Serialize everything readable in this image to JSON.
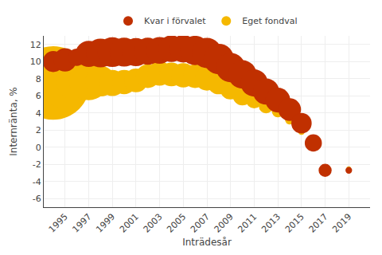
{
  "chart_data": {
    "type": "bubble",
    "xlabel": "Inträdesår",
    "ylabel": "Internränta, %",
    "xlim": [
      1993.2,
      2020.8
    ],
    "ylim": [
      -7,
      13
    ],
    "xticks": [
      1995,
      1997,
      1999,
      2001,
      2003,
      2005,
      2007,
      2009,
      2011,
      2013,
      2015,
      2017,
      2019
    ],
    "yticks": [
      -6,
      -4,
      -2,
      0,
      2,
      4,
      6,
      8,
      10,
      12
    ],
    "grid": true,
    "legend": "top",
    "series": [
      {
        "name": "Kvar i förvalet",
        "color": "#c03000",
        "x": [
          1994,
          1995,
          1996,
          1997,
          1998,
          1999,
          2000,
          2001,
          2002,
          2003,
          2004,
          2005,
          2006,
          2007,
          2008,
          2009,
          2010,
          2011,
          2012,
          2013,
          2014,
          2015,
          2016,
          2017,
          2018,
          2019
        ],
        "values": [
          10.0,
          10.2,
          10.5,
          10.9,
          11.0,
          11.1,
          11.1,
          11.1,
          11.2,
          11.3,
          11.5,
          11.5,
          11.3,
          11.0,
          10.3,
          9.3,
          8.5,
          7.5,
          6.5,
          5.5,
          4.4,
          2.8,
          0.5,
          -2.7,
          null,
          -2.7
        ],
        "sizes": [
          180,
          220,
          120,
          280,
          340,
          360,
          340,
          320,
          300,
          290,
          290,
          310,
          350,
          370,
          380,
          350,
          330,
          300,
          280,
          250,
          210,
          170,
          120,
          70,
          null,
          18
        ]
      },
      {
        "name": "Eget fondval",
        "color": "#f5b800",
        "x": [
          1994,
          1995,
          1996,
          1997,
          1998,
          1999,
          2000,
          2001,
          2002,
          2003,
          2004,
          2005,
          2006,
          2007,
          2008,
          2009,
          2010,
          2011,
          2012,
          2013,
          2014,
          2015,
          2016,
          2017,
          2018,
          2019,
          2020
        ],
        "values": [
          7.5,
          8.0,
          7.8,
          7.8,
          7.7,
          7.5,
          7.6,
          7.8,
          8.3,
          8.6,
          8.5,
          8.4,
          8.3,
          8.0,
          7.5,
          6.8,
          6.0,
          5.5,
          4.8,
          4.2,
          3.2,
          1.8,
          null,
          null,
          null,
          -2.5,
          null
        ],
        "sizes": [
          2200,
          1400,
          700,
          640,
          380,
          280,
          240,
          230,
          230,
          240,
          230,
          240,
          230,
          230,
          210,
          180,
          150,
          110,
          85,
          60,
          35,
          15,
          null,
          null,
          null,
          8,
          null
        ]
      }
    ]
  }
}
